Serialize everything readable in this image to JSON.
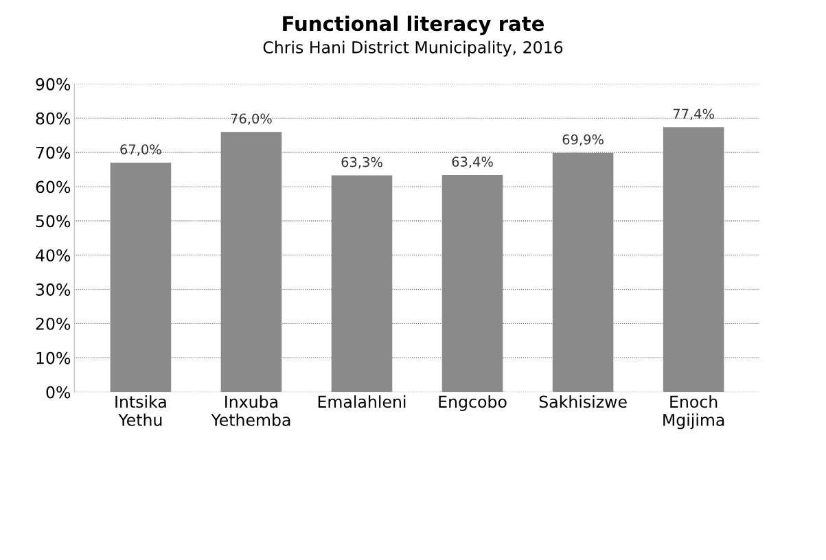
{
  "chart_data": {
    "type": "bar",
    "title": "Functional literacy rate",
    "subtitle": "Chris Hani District Municipality, 2016",
    "categories": [
      "Intsika\nYethu",
      "Inxuba\nYethemba",
      "Emalahleni",
      "Engcobo",
      "Sakhisizwe",
      "Enoch\nMgijima"
    ],
    "values": [
      67.0,
      76.0,
      63.3,
      63.4,
      69.9,
      77.4
    ],
    "value_labels": [
      "67,0%",
      "76,0%",
      "63,3%",
      "63,4%",
      "69,9%",
      "77,4%"
    ],
    "color": "#8a8a8a",
    "ylim": [
      0,
      90
    ],
    "yticks": [
      {
        "value": 0,
        "label": "0%"
      },
      {
        "value": 10,
        "label": "10%"
      },
      {
        "value": 20,
        "label": "20%"
      },
      {
        "value": 30,
        "label": "30%"
      },
      {
        "value": 40,
        "label": "40%"
      },
      {
        "value": 50,
        "label": "50%"
      },
      {
        "value": 60,
        "label": "60%"
      },
      {
        "value": 70,
        "label": "70%"
      },
      {
        "value": 80,
        "label": "80%"
      },
      {
        "value": 90,
        "label": "90%"
      }
    ],
    "grid": "y",
    "line_style": "dotted"
  }
}
